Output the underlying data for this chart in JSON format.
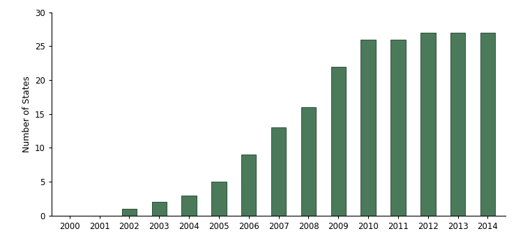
{
  "years": [
    2000,
    2001,
    2002,
    2003,
    2004,
    2005,
    2006,
    2007,
    2008,
    2009,
    2010,
    2011,
    2012,
    2013,
    2014
  ],
  "values": [
    0,
    0,
    1,
    2,
    3,
    5,
    9,
    13,
    16,
    22,
    26,
    26,
    27,
    27,
    27
  ],
  "bar_color": "#4a7a5a",
  "bar_edgecolor": "#2e4e38",
  "ylabel": "Number of States",
  "ylim": [
    0,
    30
  ],
  "yticks": [
    0,
    5,
    10,
    15,
    20,
    25,
    30
  ],
  "background_color": "#ffffff",
  "bar_width": 0.5,
  "ylabel_fontsize": 9,
  "tick_fontsize": 8.5,
  "figsize": [
    7.4,
    3.52
  ],
  "dpi": 100
}
